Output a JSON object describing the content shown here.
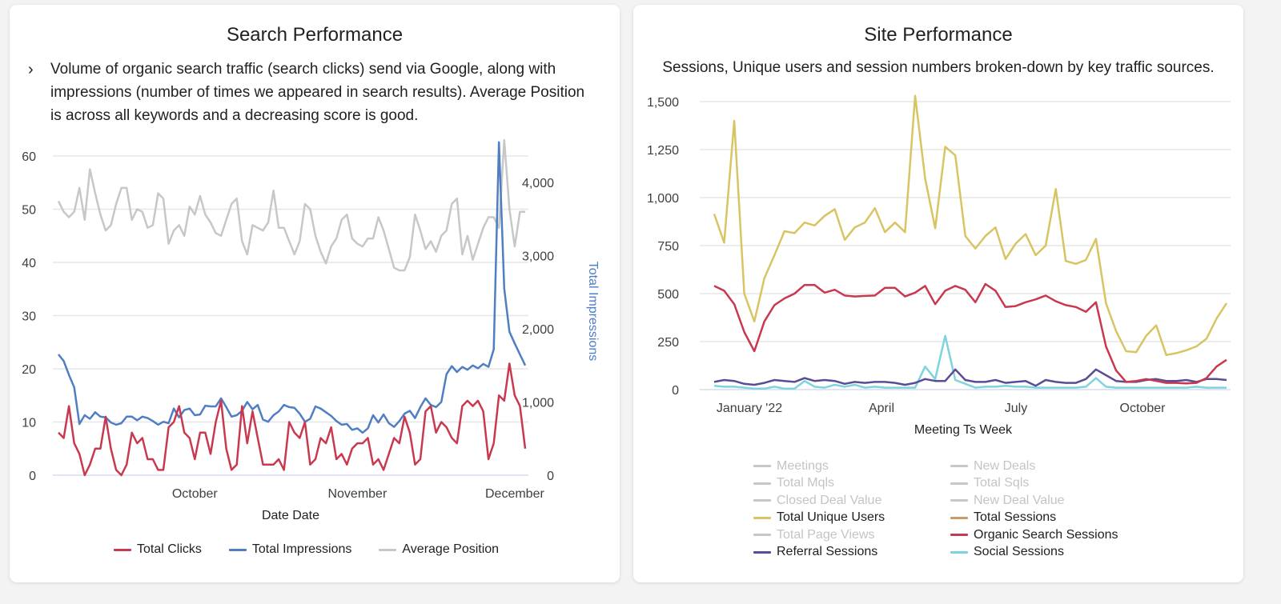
{
  "cards": [
    {
      "title": "Search Performance",
      "description": "Volume of organic search traffic (search clicks) send via Google, along with impressions (number of times we appeared in search results). Average Position is across all keywords and a decreasing score is good.",
      "expand_icon": "chevron-right-icon"
    },
    {
      "title": "Site Performance",
      "description": "Sessions, Unique users and session numbers broken-down by key traffic sources."
    }
  ],
  "chart_data": [
    {
      "type": "line",
      "title": "Search Performance",
      "xlabel": "Date Date",
      "ylabel": "",
      "y2label": "Total Impressions",
      "x_tick_labels": [
        "October",
        "November",
        "December"
      ],
      "x_tick_index": [
        26,
        57,
        87
      ],
      "ylim": [
        0,
        60
      ],
      "y_ticks": [
        "0",
        "10",
        "20",
        "30",
        "40",
        "50",
        "60"
      ],
      "y2lim": [
        0,
        4000
      ],
      "y2_ticks": [
        "0",
        "1,000",
        "2,000",
        "3,000",
        "4,000"
      ],
      "grid": true,
      "legend_position": "bottom",
      "series": [
        {
          "name": "Total Clicks",
          "axis": "left",
          "color": "#c8394f",
          "values": [
            8,
            7,
            13,
            6,
            4,
            0,
            2,
            5,
            5,
            11,
            5,
            1,
            0,
            2,
            8,
            6,
            7,
            3,
            3,
            1,
            1,
            9,
            10,
            13,
            8,
            7,
            3,
            8,
            8,
            4,
            10,
            14,
            5,
            1,
            2,
            13,
            6,
            12,
            7,
            2,
            2,
            2,
            3,
            1,
            10,
            8,
            7,
            10,
            2,
            3,
            7,
            6,
            9,
            3,
            4,
            2,
            5,
            6,
            6,
            7,
            2,
            3,
            1,
            4,
            7,
            6,
            11,
            8,
            2,
            3,
            12,
            13,
            8,
            10,
            9,
            7,
            6,
            13,
            14,
            13,
            14,
            12,
            3,
            6,
            15,
            14,
            21,
            15,
            13,
            5
          ]
        },
        {
          "name": "Total Impressions",
          "axis": "right",
          "color": "#4f7ec3",
          "values": [
            1650,
            1560,
            1370,
            1200,
            700,
            820,
            770,
            860,
            800,
            790,
            720,
            690,
            710,
            800,
            800,
            750,
            800,
            780,
            740,
            690,
            730,
            710,
            910,
            790,
            890,
            910,
            820,
            830,
            950,
            940,
            940,
            1050,
            930,
            800,
            820,
            880,
            1000,
            900,
            960,
            760,
            730,
            820,
            870,
            960,
            930,
            920,
            840,
            730,
            770,
            940,
            910,
            860,
            810,
            740,
            690,
            700,
            620,
            640,
            580,
            640,
            820,
            720,
            830,
            710,
            660,
            740,
            840,
            880,
            780,
            930,
            1050,
            960,
            930,
            1000,
            1380,
            1490,
            1410,
            1480,
            1440,
            1500,
            1460,
            1520,
            1480,
            1720,
            4550,
            2550,
            1960,
            1800,
            1650,
            1500
          ]
        },
        {
          "name": "Average Position",
          "axis": "left",
          "color": "#c7c7c7",
          "values": [
            51.5,
            49.5,
            48.5,
            49.5,
            54,
            48,
            57.5,
            53,
            49,
            46,
            47,
            51,
            54,
            54,
            48,
            50,
            49.5,
            46.5,
            47,
            53,
            52,
            43.5,
            46,
            47,
            45,
            50.5,
            49,
            52.5,
            49,
            47.5,
            45.5,
            45,
            48,
            51,
            52,
            44,
            41.5,
            47,
            46.5,
            46,
            47.5,
            53.5,
            46.5,
            46.5,
            44,
            41.5,
            44,
            51,
            50,
            45,
            42,
            39.8,
            43,
            44.5,
            48,
            49,
            44.5,
            43.5,
            43,
            44.5,
            44.5,
            48.5,
            46,
            42.5,
            39,
            38.5,
            38.5,
            41,
            49,
            46,
            42.5,
            44,
            42,
            45,
            46,
            51,
            52,
            41.5,
            45,
            40.5,
            43.5,
            46.5,
            48.5,
            48.5,
            46.5,
            63,
            50,
            43,
            49.5,
            49.5
          ]
        }
      ]
    },
    {
      "type": "line",
      "title": "Site Performance",
      "xlabel": "Meeting Ts Week",
      "ylabel": "",
      "x_tick_labels": [
        "January '22",
        "April",
        "July",
        "October"
      ],
      "x_tick_index": [
        3,
        16,
        30,
        43
      ],
      "ylim": [
        0,
        1500
      ],
      "y_ticks": [
        "0",
        "250",
        "500",
        "750",
        "1,000",
        "1,250",
        "1,500"
      ],
      "grid": true,
      "legend_position": "bottom",
      "legend": [
        {
          "name": "Meetings",
          "color": "#c7c7c7",
          "active": false
        },
        {
          "name": "New Deals",
          "color": "#c7c7c7",
          "active": false
        },
        {
          "name": "Total Mqls",
          "color": "#c7c7c7",
          "active": false
        },
        {
          "name": "Total Sqls",
          "color": "#c7c7c7",
          "active": false
        },
        {
          "name": "Closed Deal Value",
          "color": "#c7c7c7",
          "active": false
        },
        {
          "name": "New Deal Value",
          "color": "#c7c7c7",
          "active": false
        },
        {
          "name": "Total Unique Users",
          "color": "#d8c462",
          "active": true
        },
        {
          "name": "Total Sessions",
          "color": "#c99a6a",
          "active": true
        },
        {
          "name": "Total Page Views",
          "color": "#c7c7c7",
          "active": false
        },
        {
          "name": "Organic Search Sessions",
          "color": "#c8394f",
          "active": true
        },
        {
          "name": "Referral Sessions",
          "color": "#5b4b96",
          "active": true
        },
        {
          "name": "Social Sessions",
          "color": "#7fd3df",
          "active": true
        }
      ],
      "series": [
        {
          "name": "Total Unique Users",
          "color": "#d8c462",
          "values": [
            915,
            765,
            1400,
            500,
            355,
            580,
            700,
            825,
            815,
            870,
            855,
            905,
            940,
            780,
            845,
            870,
            945,
            820,
            870,
            820,
            1530,
            1100,
            840,
            1265,
            1220,
            800,
            735,
            800,
            845,
            680,
            760,
            810,
            700,
            750,
            1045,
            670,
            655,
            675,
            785,
            450,
            305,
            200,
            195,
            280,
            335,
            180,
            190,
            205,
            225,
            265,
            370,
            450
          ]
        },
        {
          "name": "Organic Search Sessions",
          "color": "#c8394f",
          "values": [
            540,
            515,
            445,
            300,
            200,
            355,
            440,
            475,
            500,
            545,
            545,
            505,
            520,
            490,
            485,
            488,
            490,
            530,
            530,
            485,
            505,
            540,
            445,
            515,
            540,
            520,
            455,
            550,
            515,
            430,
            435,
            455,
            470,
            490,
            460,
            440,
            430,
            405,
            455,
            225,
            100,
            40,
            45,
            55,
            45,
            35,
            35,
            32,
            35,
            60,
            120,
            155
          ]
        },
        {
          "name": "Referral Sessions",
          "color": "#5b4b96",
          "values": [
            40,
            50,
            45,
            30,
            25,
            35,
            50,
            45,
            40,
            60,
            45,
            50,
            45,
            30,
            40,
            35,
            40,
            40,
            35,
            25,
            35,
            55,
            45,
            45,
            105,
            50,
            40,
            40,
            50,
            35,
            40,
            45,
            20,
            50,
            40,
            35,
            35,
            55,
            105,
            75,
            45,
            40,
            40,
            50,
            55,
            45,
            45,
            50,
            40,
            55,
            55,
            50
          ]
        },
        {
          "name": "Social Sessions",
          "color": "#7fd3df",
          "values": [
            20,
            15,
            15,
            10,
            5,
            5,
            15,
            5,
            5,
            45,
            15,
            10,
            25,
            15,
            25,
            10,
            15,
            10,
            10,
            10,
            10,
            120,
            55,
            280,
            50,
            30,
            10,
            15,
            15,
            20,
            15,
            15,
            10,
            10,
            10,
            10,
            10,
            15,
            60,
            15,
            10,
            10,
            10,
            10,
            10,
            10,
            10,
            10,
            15,
            10,
            10,
            10
          ]
        }
      ]
    }
  ]
}
